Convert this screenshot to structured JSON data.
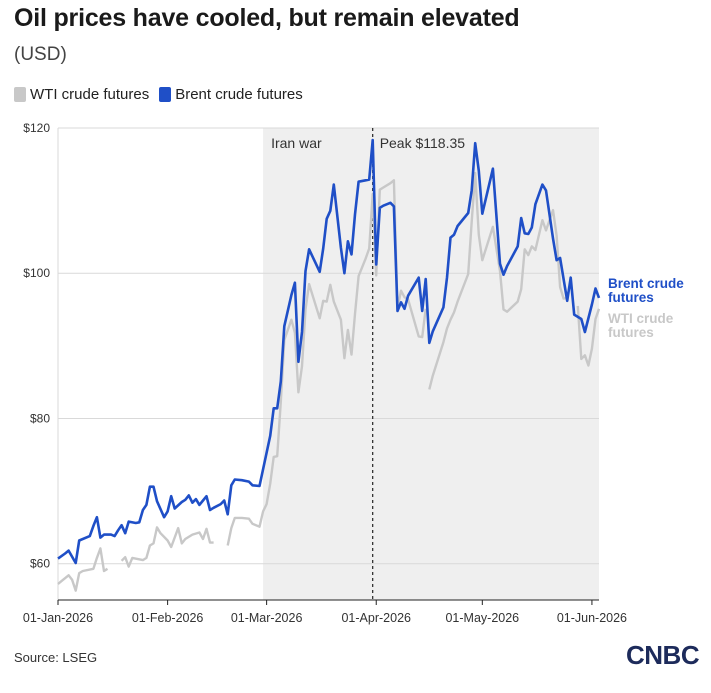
{
  "title": "Oil prices have cooled, but remain elevated",
  "subtitle": "(USD)",
  "source": "Source: LSEG",
  "logo": "CNBC",
  "chart_data": {
    "type": "line",
    "title": "Oil prices have cooled, but remain elevated",
    "subtitle": "(USD)",
    "xlabel": "",
    "ylabel": "",
    "ylim": [
      55,
      120
    ],
    "y_ticks": [
      {
        "value": 60,
        "label": "$60"
      },
      {
        "value": 80,
        "label": "$80"
      },
      {
        "value": 100,
        "label": "$100"
      },
      {
        "value": 120,
        "label": "$120"
      }
    ],
    "x_range": [
      "2026-01-01",
      "2026-06-03"
    ],
    "x_ticks": [
      {
        "date": "2026-01-01",
        "label": "01-Jan-2026"
      },
      {
        "date": "2026-02-01",
        "label": "01-Feb-2026"
      },
      {
        "date": "2026-03-01",
        "label": "01-Mar-2026"
      },
      {
        "date": "2026-04-01",
        "label": "01-Apr-2026"
      },
      {
        "date": "2026-05-01",
        "label": "01-May-2026"
      },
      {
        "date": "2026-06-01",
        "label": "01-Jun-2026"
      }
    ],
    "grid": "horizontal",
    "legend_position": "top-left",
    "shaded_region": {
      "start": "2026-02-28",
      "end": "2026-06-03",
      "label": "Iran war",
      "color": "#efefef"
    },
    "annotation": {
      "date": "2026-03-31",
      "label": "Peak $118.35"
    },
    "series": [
      {
        "name": "WTI crude futures",
        "color": "#c8c8c8",
        "end_label": [
          "WTI crude",
          "futures"
        ],
        "points": [
          [
            "2026-01-01",
            57.2
          ],
          [
            "2026-01-02",
            57.6
          ],
          [
            "2026-01-04",
            58.4
          ],
          [
            "2026-01-05",
            57.8
          ],
          [
            "2026-01-06",
            56.3
          ],
          [
            "2026-01-07",
            58.7
          ],
          [
            "2026-01-08",
            59.0
          ],
          [
            "2026-01-11",
            59.3
          ],
          [
            "2026-01-12",
            60.8
          ],
          [
            "2026-01-13",
            62.1
          ],
          [
            "2026-01-14",
            59.0
          ],
          [
            "2026-01-15",
            59.3
          ],
          null,
          [
            "2026-01-19",
            60.4
          ],
          [
            "2026-01-20",
            60.9
          ],
          [
            "2026-01-21",
            59.6
          ],
          [
            "2026-01-22",
            60.8
          ],
          [
            "2026-01-25",
            60.5
          ],
          [
            "2026-01-26",
            60.8
          ],
          [
            "2026-01-27",
            62.5
          ],
          [
            "2026-01-28",
            62.8
          ],
          [
            "2026-01-29",
            65.0
          ],
          [
            "2026-01-30",
            64.2
          ],
          [
            "2026-02-01",
            63.2
          ],
          [
            "2026-02-02",
            62.3
          ],
          [
            "2026-02-04",
            64.9
          ],
          [
            "2026-02-05",
            62.8
          ],
          [
            "2026-02-06",
            63.4
          ],
          [
            "2026-02-08",
            64.0
          ],
          [
            "2026-02-10",
            64.3
          ],
          [
            "2026-02-11",
            63.4
          ],
          [
            "2026-02-12",
            64.8
          ],
          [
            "2026-02-13",
            62.9
          ],
          [
            "2026-02-14",
            62.9
          ],
          null,
          [
            "2026-02-18",
            62.5
          ],
          [
            "2026-02-19",
            64.9
          ],
          [
            "2026-02-20",
            66.3
          ],
          [
            "2026-02-22",
            66.3
          ],
          [
            "2026-02-24",
            66.2
          ],
          [
            "2026-02-25",
            65.5
          ],
          [
            "2026-02-27",
            65.1
          ],
          [
            "2026-02-28",
            67.2
          ],
          [
            "2026-03-01",
            68.2
          ],
          [
            "2026-03-02",
            71.0
          ],
          [
            "2026-03-03",
            74.7
          ],
          [
            "2026-03-04",
            74.8
          ],
          [
            "2026-03-05",
            82.3
          ],
          [
            "2026-03-06",
            90.8
          ],
          [
            "2026-03-08",
            93.6
          ],
          [
            "2026-03-09",
            91.8
          ],
          [
            "2026-03-10",
            83.6
          ],
          [
            "2026-03-11",
            87.2
          ],
          [
            "2026-03-12",
            95.0
          ],
          [
            "2026-03-13",
            98.5
          ],
          [
            "2026-03-16",
            93.8
          ],
          [
            "2026-03-17",
            96.2
          ],
          [
            "2026-03-18",
            96.1
          ],
          [
            "2026-03-19",
            98.4
          ],
          [
            "2026-03-20",
            96.1
          ],
          [
            "2026-03-22",
            93.6
          ],
          [
            "2026-03-23",
            88.3
          ],
          [
            "2026-03-24",
            92.2
          ],
          [
            "2026-03-25",
            88.8
          ],
          [
            "2026-03-26",
            94.4
          ],
          [
            "2026-03-27",
            99.6
          ],
          [
            "2026-03-29",
            102.0
          ],
          [
            "2026-03-30",
            103.4
          ],
          [
            "2026-03-31",
            110.9
          ],
          [
            "2026-04-01",
            99.7
          ],
          [
            "2026-04-02",
            111.5
          ],
          [
            "2026-04-03",
            111.8
          ],
          [
            "2026-04-05",
            112.4
          ],
          [
            "2026-04-06",
            112.8
          ],
          [
            "2026-04-07",
            95.1
          ],
          [
            "2026-04-08",
            97.6
          ],
          [
            "2026-04-09",
            96.7
          ],
          [
            "2026-04-10",
            96.4
          ],
          [
            "2026-04-13",
            91.3
          ],
          [
            "2026-04-14",
            91.2
          ],
          [
            "2026-04-15",
            95.1
          ],
          null,
          [
            "2026-04-16",
            84.0
          ],
          [
            "2026-04-17",
            85.9
          ],
          [
            "2026-04-20",
            90.5
          ],
          [
            "2026-04-21",
            92.4
          ],
          [
            "2026-04-22",
            93.6
          ],
          [
            "2026-04-23",
            94.6
          ],
          [
            "2026-04-24",
            96.1
          ],
          [
            "2026-04-27",
            99.9
          ],
          [
            "2026-04-28",
            107.1
          ],
          [
            "2026-04-29",
            113.8
          ],
          [
            "2026-04-30",
            105.3
          ],
          [
            "2026-05-01",
            101.8
          ],
          [
            "2026-05-04",
            106.4
          ],
          [
            "2026-05-06",
            100.3
          ],
          [
            "2026-05-07",
            95.0
          ],
          [
            "2026-05-08",
            94.7
          ],
          [
            "2026-05-11",
            96.1
          ],
          [
            "2026-05-12",
            97.8
          ],
          [
            "2026-05-13",
            103.3
          ],
          [
            "2026-05-14",
            102.5
          ],
          [
            "2026-05-15",
            103.7
          ],
          [
            "2026-05-16",
            103.2
          ],
          [
            "2026-05-18",
            107.3
          ],
          [
            "2026-05-19",
            105.9
          ],
          [
            "2026-05-21",
            108.7
          ],
          [
            "2026-05-22",
            105.2
          ],
          [
            "2026-05-23",
            98.1
          ],
          [
            "2026-05-24",
            96.5
          ],
          [
            "2026-05-25",
            96.6
          ],
          null,
          [
            "2026-05-28",
            95.5
          ],
          [
            "2026-05-29",
            88.2
          ],
          [
            "2026-05-30",
            88.7
          ],
          [
            "2026-05-31",
            87.3
          ],
          [
            "2026-06-01",
            89.6
          ],
          [
            "2026-06-02",
            93.7
          ],
          [
            "2026-06-03",
            95.1
          ]
        ]
      },
      {
        "name": "Brent crude futures",
        "color": "#1f4fc7",
        "end_label": [
          "Brent crude",
          "futures"
        ],
        "points": [
          [
            "2026-01-01",
            60.7
          ],
          [
            "2026-01-03",
            61.4
          ],
          [
            "2026-01-04",
            61.8
          ],
          [
            "2026-01-06",
            60.1
          ],
          [
            "2026-01-07",
            63.2
          ],
          [
            "2026-01-10",
            63.8
          ],
          [
            "2026-01-11",
            65.2
          ],
          [
            "2026-01-12",
            66.4
          ],
          [
            "2026-01-13",
            63.6
          ],
          [
            "2026-01-14",
            64.0
          ],
          [
            "2026-01-16",
            64.0
          ],
          [
            "2026-01-17",
            63.8
          ],
          [
            "2026-01-18",
            64.6
          ],
          [
            "2026-01-19",
            65.3
          ],
          [
            "2026-01-20",
            64.2
          ],
          [
            "2026-01-21",
            65.8
          ],
          [
            "2026-01-23",
            65.6
          ],
          [
            "2026-01-24",
            65.7
          ],
          [
            "2026-01-25",
            67.4
          ],
          [
            "2026-01-26",
            68.1
          ],
          [
            "2026-01-27",
            70.6
          ],
          [
            "2026-01-28",
            70.6
          ],
          [
            "2026-01-29",
            68.6
          ],
          [
            "2026-01-31",
            66.4
          ],
          [
            "2026-02-01",
            67.2
          ],
          [
            "2026-02-02",
            69.3
          ],
          [
            "2026-02-03",
            67.6
          ],
          [
            "2026-02-05",
            68.5
          ],
          [
            "2026-02-06",
            68.8
          ],
          [
            "2026-02-07",
            69.4
          ],
          [
            "2026-02-08",
            68.4
          ],
          [
            "2026-02-09",
            68.9
          ],
          [
            "2026-02-10",
            68.1
          ],
          [
            "2026-02-11",
            68.7
          ],
          [
            "2026-02-12",
            69.3
          ],
          [
            "2026-02-13",
            67.4
          ],
          [
            "2026-02-14",
            67.7
          ],
          [
            "2026-02-16",
            68.2
          ],
          [
            "2026-02-17",
            68.7
          ],
          [
            "2026-02-18",
            66.8
          ],
          [
            "2026-02-19",
            70.8
          ],
          [
            "2026-02-20",
            71.6
          ],
          [
            "2026-02-22",
            71.5
          ],
          [
            "2026-02-24",
            71.3
          ],
          [
            "2026-02-25",
            70.8
          ],
          [
            "2026-02-27",
            70.7
          ],
          [
            "2026-03-02",
            77.6
          ],
          [
            "2026-03-03",
            81.4
          ],
          [
            "2026-03-04",
            81.4
          ],
          [
            "2026-03-05",
            85.1
          ],
          [
            "2026-03-06",
            92.7
          ],
          [
            "2026-03-08",
            97.0
          ],
          [
            "2026-03-09",
            98.7
          ],
          [
            "2026-03-10",
            87.8
          ],
          [
            "2026-03-11",
            91.9
          ],
          [
            "2026-03-12",
            100.3
          ],
          [
            "2026-03-13",
            103.3
          ],
          [
            "2026-03-16",
            100.2
          ],
          [
            "2026-03-17",
            103.4
          ],
          [
            "2026-03-18",
            107.5
          ],
          [
            "2026-03-19",
            108.6
          ],
          [
            "2026-03-20",
            112.2
          ],
          [
            "2026-03-22",
            103.5
          ],
          [
            "2026-03-23",
            100.0
          ],
          [
            "2026-03-24",
            104.4
          ],
          [
            "2026-03-25",
            102.6
          ],
          [
            "2026-03-26",
            108.1
          ],
          [
            "2026-03-27",
            112.6
          ],
          [
            "2026-03-29",
            112.8
          ],
          [
            "2026-03-30",
            112.9
          ],
          [
            "2026-03-31",
            118.35
          ],
          [
            "2026-04-01",
            101.2
          ],
          [
            "2026-04-02",
            109.0
          ],
          [
            "2026-04-03",
            109.3
          ],
          [
            "2026-04-05",
            109.7
          ],
          [
            "2026-04-06",
            109.2
          ],
          [
            "2026-04-07",
            94.8
          ],
          [
            "2026-04-08",
            96.0
          ],
          [
            "2026-04-09",
            95.1
          ],
          [
            "2026-04-10",
            96.9
          ],
          [
            "2026-04-13",
            99.4
          ],
          [
            "2026-04-14",
            94.8
          ],
          [
            "2026-04-15",
            99.2
          ],
          [
            "2026-04-16",
            90.4
          ],
          [
            "2026-04-17",
            92.0
          ],
          [
            "2026-04-20",
            95.3
          ],
          [
            "2026-04-21",
            99.4
          ],
          [
            "2026-04-22",
            104.9
          ],
          [
            "2026-04-23",
            105.3
          ],
          [
            "2026-04-24",
            106.5
          ],
          [
            "2026-04-27",
            108.3
          ],
          [
            "2026-04-28",
            111.4
          ],
          [
            "2026-04-29",
            117.9
          ],
          [
            "2026-04-30",
            114.1
          ],
          [
            "2026-05-01",
            108.2
          ],
          [
            "2026-05-04",
            114.4
          ],
          [
            "2026-05-06",
            101.3
          ],
          [
            "2026-05-07",
            99.8
          ],
          [
            "2026-05-08",
            101.0
          ],
          [
            "2026-05-11",
            103.7
          ],
          [
            "2026-05-12",
            107.6
          ],
          [
            "2026-05-13",
            105.5
          ],
          [
            "2026-05-14",
            105.4
          ],
          [
            "2026-05-15",
            106.3
          ],
          [
            "2026-05-16",
            109.5
          ],
          [
            "2026-05-18",
            112.2
          ],
          [
            "2026-05-19",
            111.4
          ],
          [
            "2026-05-21",
            104.8
          ],
          [
            "2026-05-22",
            101.8
          ],
          [
            "2026-05-23",
            102.1
          ],
          [
            "2026-05-25",
            96.2
          ],
          [
            "2026-05-26",
            99.4
          ],
          [
            "2026-05-27",
            94.3
          ],
          [
            "2026-05-29",
            93.7
          ],
          [
            "2026-05-30",
            91.9
          ],
          [
            "2026-06-01",
            95.7
          ],
          [
            "2026-06-02",
            97.9
          ],
          [
            "2026-06-03",
            96.6
          ]
        ]
      }
    ]
  }
}
